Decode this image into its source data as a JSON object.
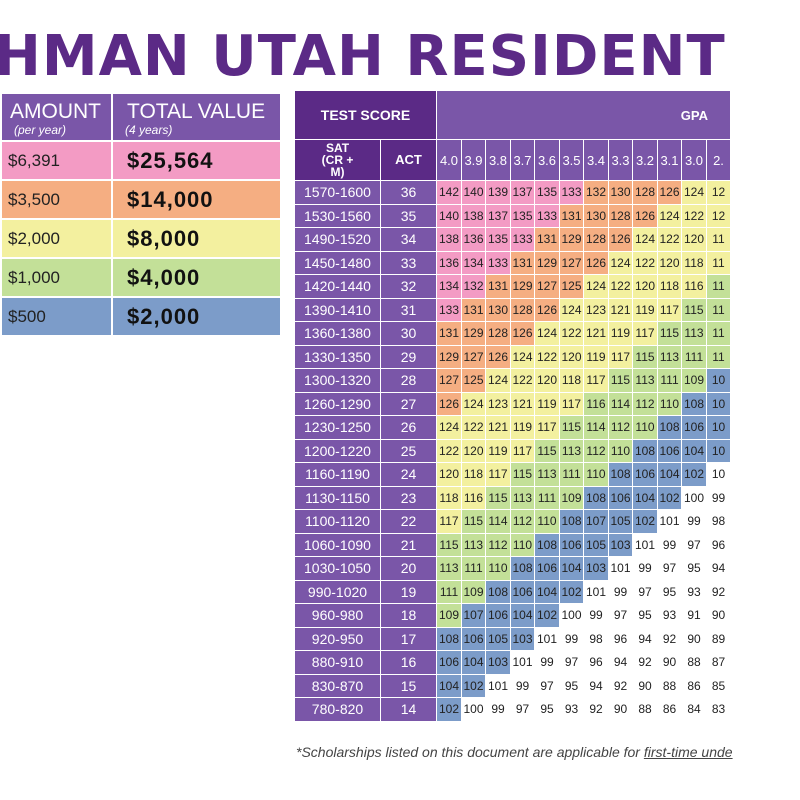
{
  "title": "HMAN UTAH RESIDENT",
  "amount_table": {
    "headers": [
      {
        "label": "AMOUNT",
        "sub": "(per year)"
      },
      {
        "label": "TOTAL VALUE",
        "sub": "(4 years)"
      }
    ],
    "rows": [
      {
        "amount": "$6,391",
        "total": "$25,564",
        "color": "#f39bc4"
      },
      {
        "amount": "$3,500",
        "total": "$14,000",
        "color": "#f5ae82"
      },
      {
        "amount": "$2,000",
        "total": "$8,000",
        "color": "#f3f09f"
      },
      {
        "amount": "$1,000",
        "total": "$4,000",
        "color": "#c3e098"
      },
      {
        "amount": "$500",
        "total": "$2,000",
        "color": "#7c9cc9"
      }
    ]
  },
  "grid": {
    "test_score_label": "TEST SCORE",
    "gpa_label": "GPA",
    "sat_label": "SAT (CR + M)",
    "act_label": "ACT",
    "gpa_cols": [
      "4.0",
      "3.9",
      "3.8",
      "3.7",
      "3.6",
      "3.5",
      "3.4",
      "3.3",
      "3.2",
      "3.1",
      "3.0",
      "2."
    ],
    "tier_colors": [
      "#f39bc4",
      "#f5ae82",
      "#f3f09f",
      "#c3e098",
      "#7c9cc9",
      "#ffffff"
    ],
    "rows": [
      {
        "sat": "1570-1600",
        "act": "36",
        "vals": [
          "142",
          "140",
          "139",
          "137",
          "135",
          "133",
          "132",
          "130",
          "128",
          "126",
          "124",
          "12"
        ]
      },
      {
        "sat": "1530-1560",
        "act": "35",
        "vals": [
          "140",
          "138",
          "137",
          "135",
          "133",
          "131",
          "130",
          "128",
          "126",
          "124",
          "122",
          "12"
        ]
      },
      {
        "sat": "1490-1520",
        "act": "34",
        "vals": [
          "138",
          "136",
          "135",
          "133",
          "131",
          "129",
          "128",
          "126",
          "124",
          "122",
          "120",
          "11"
        ]
      },
      {
        "sat": "1450-1480",
        "act": "33",
        "vals": [
          "136",
          "134",
          "133",
          "131",
          "129",
          "127",
          "126",
          "124",
          "122",
          "120",
          "118",
          "11"
        ]
      },
      {
        "sat": "1420-1440",
        "act": "32",
        "vals": [
          "134",
          "132",
          "131",
          "129",
          "127",
          "125",
          "124",
          "122",
          "120",
          "118",
          "116",
          "11"
        ]
      },
      {
        "sat": "1390-1410",
        "act": "31",
        "vals": [
          "133",
          "131",
          "130",
          "128",
          "126",
          "124",
          "123",
          "121",
          "119",
          "117",
          "115",
          "11"
        ]
      },
      {
        "sat": "1360-1380",
        "act": "30",
        "vals": [
          "131",
          "129",
          "128",
          "126",
          "124",
          "122",
          "121",
          "119",
          "117",
          "115",
          "113",
          "11"
        ]
      },
      {
        "sat": "1330-1350",
        "act": "29",
        "vals": [
          "129",
          "127",
          "126",
          "124",
          "122",
          "120",
          "119",
          "117",
          "115",
          "113",
          "111",
          "11"
        ]
      },
      {
        "sat": "1300-1320",
        "act": "28",
        "vals": [
          "127",
          "125",
          "124",
          "122",
          "120",
          "118",
          "117",
          "115",
          "113",
          "111",
          "109",
          "10"
        ]
      },
      {
        "sat": "1260-1290",
        "act": "27",
        "vals": [
          "126",
          "124",
          "123",
          "121",
          "119",
          "117",
          "116",
          "114",
          "112",
          "110",
          "108",
          "10"
        ]
      },
      {
        "sat": "1230-1250",
        "act": "26",
        "vals": [
          "124",
          "122",
          "121",
          "119",
          "117",
          "115",
          "114",
          "112",
          "110",
          "108",
          "106",
          "10"
        ]
      },
      {
        "sat": "1200-1220",
        "act": "25",
        "vals": [
          "122",
          "120",
          "119",
          "117",
          "115",
          "113",
          "112",
          "110",
          "108",
          "106",
          "104",
          "10"
        ]
      },
      {
        "sat": "1160-1190",
        "act": "24",
        "vals": [
          "120",
          "118",
          "117",
          "115",
          "113",
          "111",
          "110",
          "108",
          "106",
          "104",
          "102",
          "10"
        ]
      },
      {
        "sat": "1130-1150",
        "act": "23",
        "vals": [
          "118",
          "116",
          "115",
          "113",
          "111",
          "109",
          "108",
          "106",
          "104",
          "102",
          "100",
          "99"
        ]
      },
      {
        "sat": "1100-1120",
        "act": "22",
        "vals": [
          "117",
          "115",
          "114",
          "112",
          "110",
          "108",
          "107",
          "105",
          "102",
          "101",
          "99",
          "98"
        ]
      },
      {
        "sat": "1060-1090",
        "act": "21",
        "vals": [
          "115",
          "113",
          "112",
          "110",
          "108",
          "106",
          "105",
          "103",
          "101",
          "99",
          "97",
          "96"
        ]
      },
      {
        "sat": "1030-1050",
        "act": "20",
        "vals": [
          "113",
          "111",
          "110",
          "108",
          "106",
          "104",
          "103",
          "101",
          "99",
          "97",
          "95",
          "94"
        ]
      },
      {
        "sat": "990-1020",
        "act": "19",
        "vals": [
          "111",
          "109",
          "108",
          "106",
          "104",
          "102",
          "101",
          "99",
          "97",
          "95",
          "93",
          "92"
        ]
      },
      {
        "sat": "960-980",
        "act": "18",
        "vals": [
          "109",
          "107",
          "106",
          "104",
          "102",
          "100",
          "99",
          "97",
          "95",
          "93",
          "91",
          "90"
        ]
      },
      {
        "sat": "920-950",
        "act": "17",
        "vals": [
          "108",
          "106",
          "105",
          "103",
          "101",
          "99",
          "98",
          "96",
          "94",
          "92",
          "90",
          "89"
        ]
      },
      {
        "sat": "880-910",
        "act": "16",
        "vals": [
          "106",
          "104",
          "103",
          "101",
          "99",
          "97",
          "96",
          "94",
          "92",
          "90",
          "88",
          "87"
        ]
      },
      {
        "sat": "830-870",
        "act": "15",
        "vals": [
          "104",
          "102",
          "101",
          "99",
          "97",
          "95",
          "94",
          "92",
          "90",
          "88",
          "86",
          "85"
        ]
      },
      {
        "sat": "780-820",
        "act": "14",
        "vals": [
          "102",
          "100",
          "99",
          "97",
          "95",
          "93",
          "92",
          "90",
          "88",
          "86",
          "84",
          "83"
        ]
      }
    ]
  },
  "footnote": {
    "text": "*Scholarships listed on this document are applicable for ",
    "underlined": "first-time unde"
  }
}
